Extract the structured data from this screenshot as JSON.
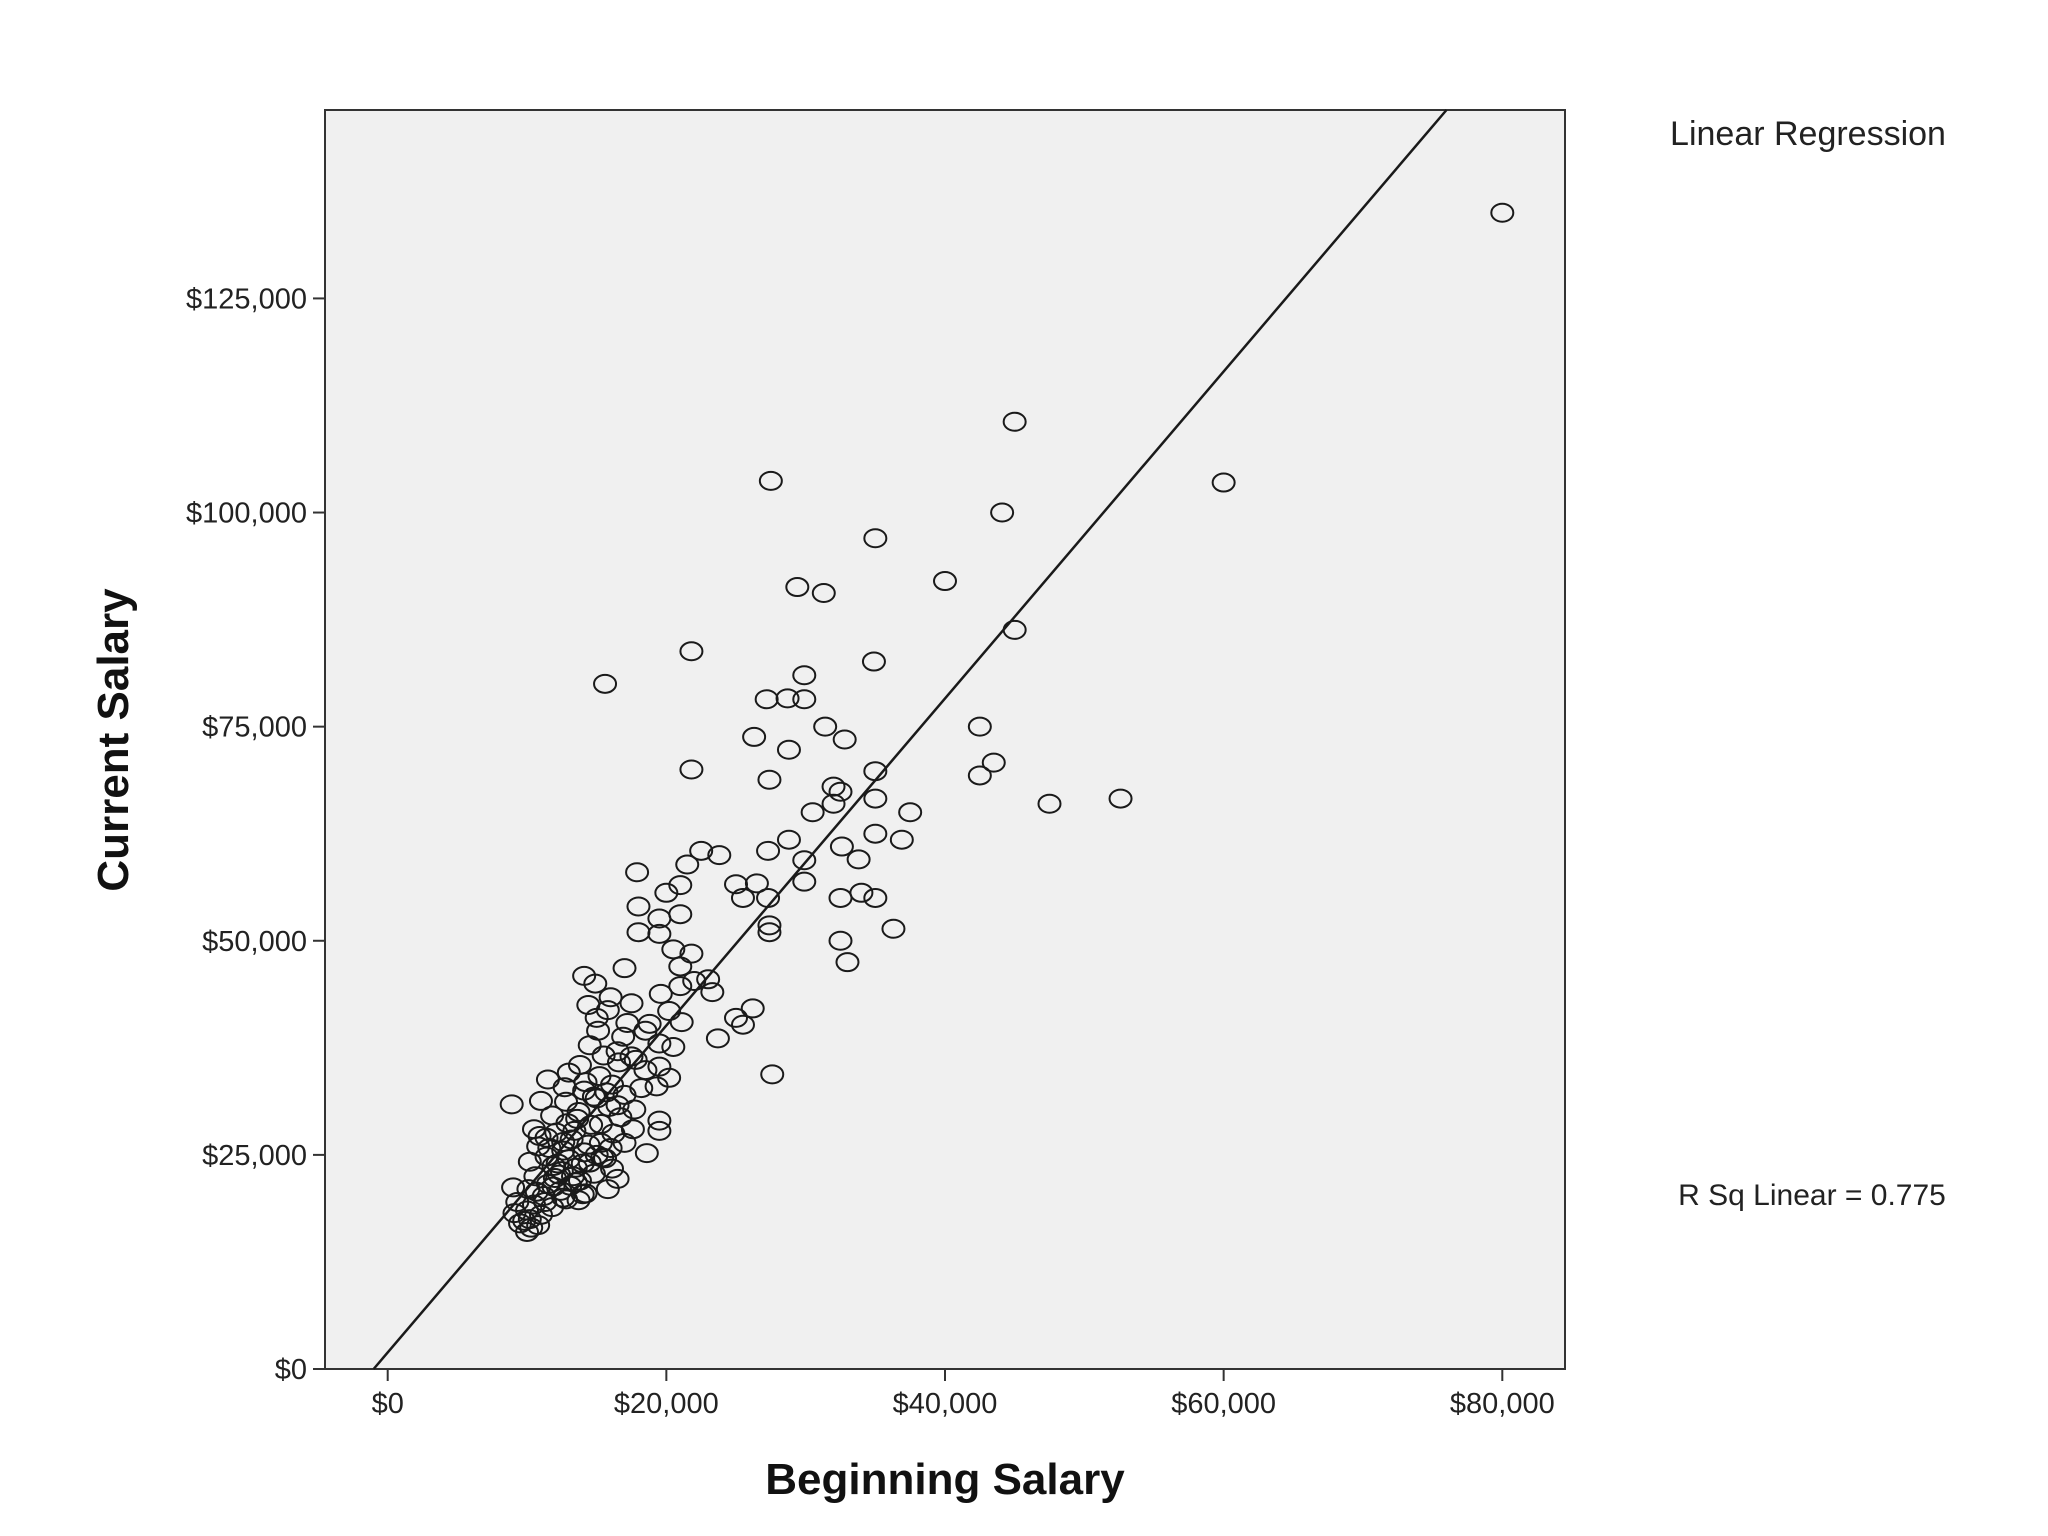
{
  "chart_data": {
    "type": "scatter",
    "xlabel": "Beginning Salary",
    "ylabel": "Current Salary",
    "xlim": [
      -4500,
      84500
    ],
    "ylim": [
      0,
      147000
    ],
    "x_ticks": [
      0,
      20000,
      40000,
      60000,
      80000
    ],
    "x_tick_labels": [
      "$0",
      "$20,000",
      "$40,000",
      "$60,000",
      "$80,000"
    ],
    "y_ticks": [
      0,
      25000,
      50000,
      75000,
      100000,
      125000
    ],
    "y_tick_labels": [
      "$0",
      "$25,000",
      "$50,000",
      "$75,000",
      "$100,000",
      "$125,000"
    ],
    "legend_title": "Linear Regression",
    "r_squared_label": "R Sq Linear = 0.775",
    "plot_background": "#f0f0f0",
    "marker": "open-circle",
    "grid": false,
    "fit_line": {
      "type": "linear",
      "slope": 1.909,
      "intercept": 1928
    },
    "series": [
      {
        "points": [
          [
            80000,
            135000
          ],
          [
            45000,
            110600
          ],
          [
            27500,
            103700
          ],
          [
            60000,
            103500
          ],
          [
            44100,
            100000
          ],
          [
            35000,
            97000
          ],
          [
            29400,
            91300
          ],
          [
            31300,
            90600
          ],
          [
            40000,
            92000
          ],
          [
            45000,
            86300
          ],
          [
            21800,
            83800
          ],
          [
            34900,
            82600
          ],
          [
            15600,
            80000
          ],
          [
            29900,
            81000
          ],
          [
            27200,
            78200
          ],
          [
            28700,
            78300
          ],
          [
            29900,
            78200
          ],
          [
            31400,
            75000
          ],
          [
            26300,
            73800
          ],
          [
            32800,
            73500
          ],
          [
            28800,
            72300
          ],
          [
            42500,
            75000
          ],
          [
            43500,
            70800
          ],
          [
            42500,
            69300
          ],
          [
            21800,
            70000
          ],
          [
            27400,
            68800
          ],
          [
            35000,
            69800
          ],
          [
            32000,
            68000
          ],
          [
            32500,
            67400
          ],
          [
            32000,
            66000
          ],
          [
            35000,
            66600
          ],
          [
            47500,
            66000
          ],
          [
            52600,
            66600
          ],
          [
            37500,
            65000
          ],
          [
            30500,
            65000
          ],
          [
            36900,
            61800
          ],
          [
            35000,
            62500
          ],
          [
            32600,
            61000
          ],
          [
            33800,
            59500
          ],
          [
            29900,
            59400
          ],
          [
            28800,
            61800
          ],
          [
            27300,
            60500
          ],
          [
            22500,
            60500
          ],
          [
            23800,
            60000
          ],
          [
            21500,
            58900
          ],
          [
            17900,
            58000
          ],
          [
            25000,
            56600
          ],
          [
            26500,
            56700
          ],
          [
            29900,
            56900
          ],
          [
            32500,
            55000
          ],
          [
            34000,
            55600
          ],
          [
            35000,
            55000
          ],
          [
            25500,
            55000
          ],
          [
            27300,
            55000
          ],
          [
            21000,
            56500
          ],
          [
            20000,
            55600
          ],
          [
            18000,
            54000
          ],
          [
            19500,
            52600
          ],
          [
            21000,
            53100
          ],
          [
            27400,
            51800
          ],
          [
            27400,
            51000
          ],
          [
            36300,
            51400
          ],
          [
            18000,
            51000
          ],
          [
            19500,
            50800
          ],
          [
            32500,
            50000
          ],
          [
            33000,
            47500
          ],
          [
            20500,
            49000
          ],
          [
            21800,
            48500
          ],
          [
            21000,
            47000
          ],
          [
            17000,
            46800
          ],
          [
            22000,
            45300
          ],
          [
            23000,
            45500
          ],
          [
            21000,
            44700
          ],
          [
            14100,
            45900
          ],
          [
            14900,
            45000
          ],
          [
            19600,
            43800
          ],
          [
            23300,
            44000
          ],
          [
            16000,
            43400
          ],
          [
            17500,
            42700
          ],
          [
            26200,
            42100
          ],
          [
            25000,
            41000
          ],
          [
            15000,
            41000
          ],
          [
            20200,
            41800
          ],
          [
            25500,
            40200
          ],
          [
            23700,
            38600
          ],
          [
            21100,
            40500
          ],
          [
            18500,
            39500
          ],
          [
            19500,
            38000
          ],
          [
            17500,
            36500
          ],
          [
            20500,
            37600
          ],
          [
            16500,
            37100
          ],
          [
            19500,
            35300
          ],
          [
            18500,
            34900
          ],
          [
            20200,
            34000
          ],
          [
            27600,
            34400
          ],
          [
            13000,
            34600
          ],
          [
            11500,
            33800
          ],
          [
            14100,
            32500
          ],
          [
            17000,
            32000
          ],
          [
            19300,
            33000
          ],
          [
            8900,
            30900
          ],
          [
            11000,
            31300
          ],
          [
            12800,
            31200
          ],
          [
            15000,
            31600
          ],
          [
            16500,
            30800
          ],
          [
            19500,
            29000
          ],
          [
            17600,
            28000
          ],
          [
            19500,
            27800
          ],
          [
            13600,
            29200
          ],
          [
            14600,
            28500
          ],
          [
            10500,
            28000
          ],
          [
            12100,
            27600
          ],
          [
            11400,
            27000
          ],
          [
            13200,
            26800
          ],
          [
            15300,
            26400
          ],
          [
            16200,
            27500
          ],
          [
            18600,
            25200
          ],
          [
            10800,
            26000
          ],
          [
            12600,
            25500
          ],
          [
            14100,
            25300
          ],
          [
            11400,
            24800
          ],
          [
            13000,
            24500
          ],
          [
            15400,
            24700
          ],
          [
            10200,
            24200
          ],
          [
            11900,
            23700
          ],
          [
            13500,
            23500
          ],
          [
            16100,
            23400
          ],
          [
            12500,
            23100
          ],
          [
            14800,
            22800
          ],
          [
            10600,
            22500
          ],
          [
            12000,
            22300
          ],
          [
            13800,
            22000
          ],
          [
            16500,
            22200
          ],
          [
            11500,
            21600
          ],
          [
            13100,
            21400
          ],
          [
            9000,
            21200
          ],
          [
            10100,
            21000
          ],
          [
            12400,
            20800
          ],
          [
            14200,
            20500
          ],
          [
            11200,
            20200
          ],
          [
            12800,
            19800
          ],
          [
            9300,
            19500
          ],
          [
            10500,
            19200
          ],
          [
            11800,
            18900
          ],
          [
            13700,
            19700
          ],
          [
            10000,
            18500
          ],
          [
            11000,
            18000
          ],
          [
            9100,
            18200
          ],
          [
            10200,
            17500
          ],
          [
            9500,
            17000
          ],
          [
            10300,
            16500
          ],
          [
            10000,
            16000
          ],
          [
            9800,
            17300
          ],
          [
            10800,
            16800
          ],
          [
            11900,
            21300
          ],
          [
            13500,
            21800
          ],
          [
            15800,
            21000
          ],
          [
            12200,
            24000
          ],
          [
            14500,
            24100
          ],
          [
            12600,
            26500
          ],
          [
            14400,
            26200
          ],
          [
            13400,
            27800
          ],
          [
            15300,
            28600
          ],
          [
            16700,
            29400
          ],
          [
            13700,
            30000
          ],
          [
            15900,
            30600
          ],
          [
            14800,
            31800
          ],
          [
            16100,
            33200
          ],
          [
            15200,
            34200
          ],
          [
            13800,
            35500
          ],
          [
            16600,
            35800
          ],
          [
            15500,
            36600
          ],
          [
            14500,
            37800
          ],
          [
            16900,
            38800
          ],
          [
            15100,
            39500
          ],
          [
            17200,
            40400
          ],
          [
            15800,
            41900
          ],
          [
            14400,
            42500
          ],
          [
            18800,
            40300
          ],
          [
            17800,
            36100
          ],
          [
            18200,
            32800
          ],
          [
            17700,
            30300
          ],
          [
            15700,
            32300
          ],
          [
            14200,
            33500
          ],
          [
            12700,
            32900
          ],
          [
            11800,
            29600
          ],
          [
            12900,
            28700
          ],
          [
            10900,
            27200
          ],
          [
            11600,
            25800
          ],
          [
            12300,
            22700
          ],
          [
            13300,
            22500
          ],
          [
            14000,
            24000
          ],
          [
            15000,
            25000
          ],
          [
            16000,
            25800
          ],
          [
            17000,
            26400
          ],
          [
            15600,
            24600
          ],
          [
            14000,
            20400
          ],
          [
            12600,
            20000
          ],
          [
            11300,
            19500
          ],
          [
            10700,
            20700
          ]
        ]
      }
    ]
  }
}
